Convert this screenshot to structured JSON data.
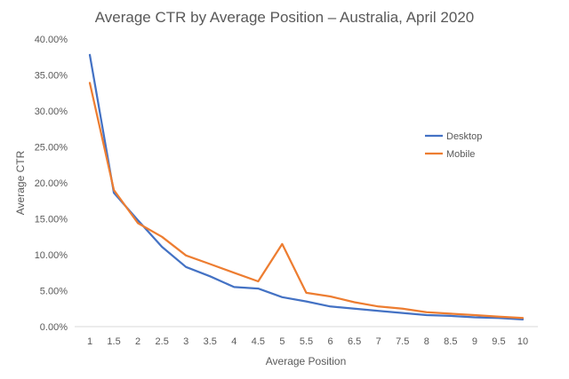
{
  "chart_data": {
    "type": "line",
    "title": "Average CTR by Average Position – Australia, April 2020",
    "xlabel": "Average Position",
    "ylabel": "Average CTR",
    "x": [
      1,
      1.5,
      2,
      2.5,
      3,
      3.5,
      4,
      4.5,
      5,
      5.5,
      6,
      6.5,
      7,
      7.5,
      8,
      8.5,
      9,
      9.5,
      10
    ],
    "x_tick_labels": [
      "1",
      "1.5",
      "2",
      "2.5",
      "3",
      "3.5",
      "4",
      "4.5",
      "5",
      "5.5",
      "6",
      "6.5",
      "7",
      "7.5",
      "8",
      "8.5",
      "9",
      "9.5",
      "10"
    ],
    "ylim": [
      0,
      40
    ],
    "y_ticks": [
      0,
      5,
      10,
      15,
      20,
      25,
      30,
      35,
      40
    ],
    "y_tick_labels": [
      "0.00%",
      "5.00%",
      "10.00%",
      "15.00%",
      "20.00%",
      "25.00%",
      "30.00%",
      "35.00%",
      "40.00%"
    ],
    "grid": false,
    "legend_position": "right",
    "series": [
      {
        "name": "Desktop",
        "color": "#4472c4",
        "values": [
          37.8,
          18.6,
          14.8,
          11.1,
          8.3,
          7.0,
          5.5,
          5.3,
          4.1,
          3.5,
          2.8,
          2.5,
          2.2,
          1.9,
          1.6,
          1.5,
          1.3,
          1.2,
          1.0
        ]
      },
      {
        "name": "Mobile",
        "color": "#ed7d31",
        "values": [
          33.9,
          19.0,
          14.4,
          12.5,
          9.9,
          8.7,
          7.5,
          6.3,
          11.5,
          4.7,
          4.2,
          3.4,
          2.8,
          2.5,
          2.0,
          1.8,
          1.6,
          1.4,
          1.2
        ]
      }
    ]
  }
}
